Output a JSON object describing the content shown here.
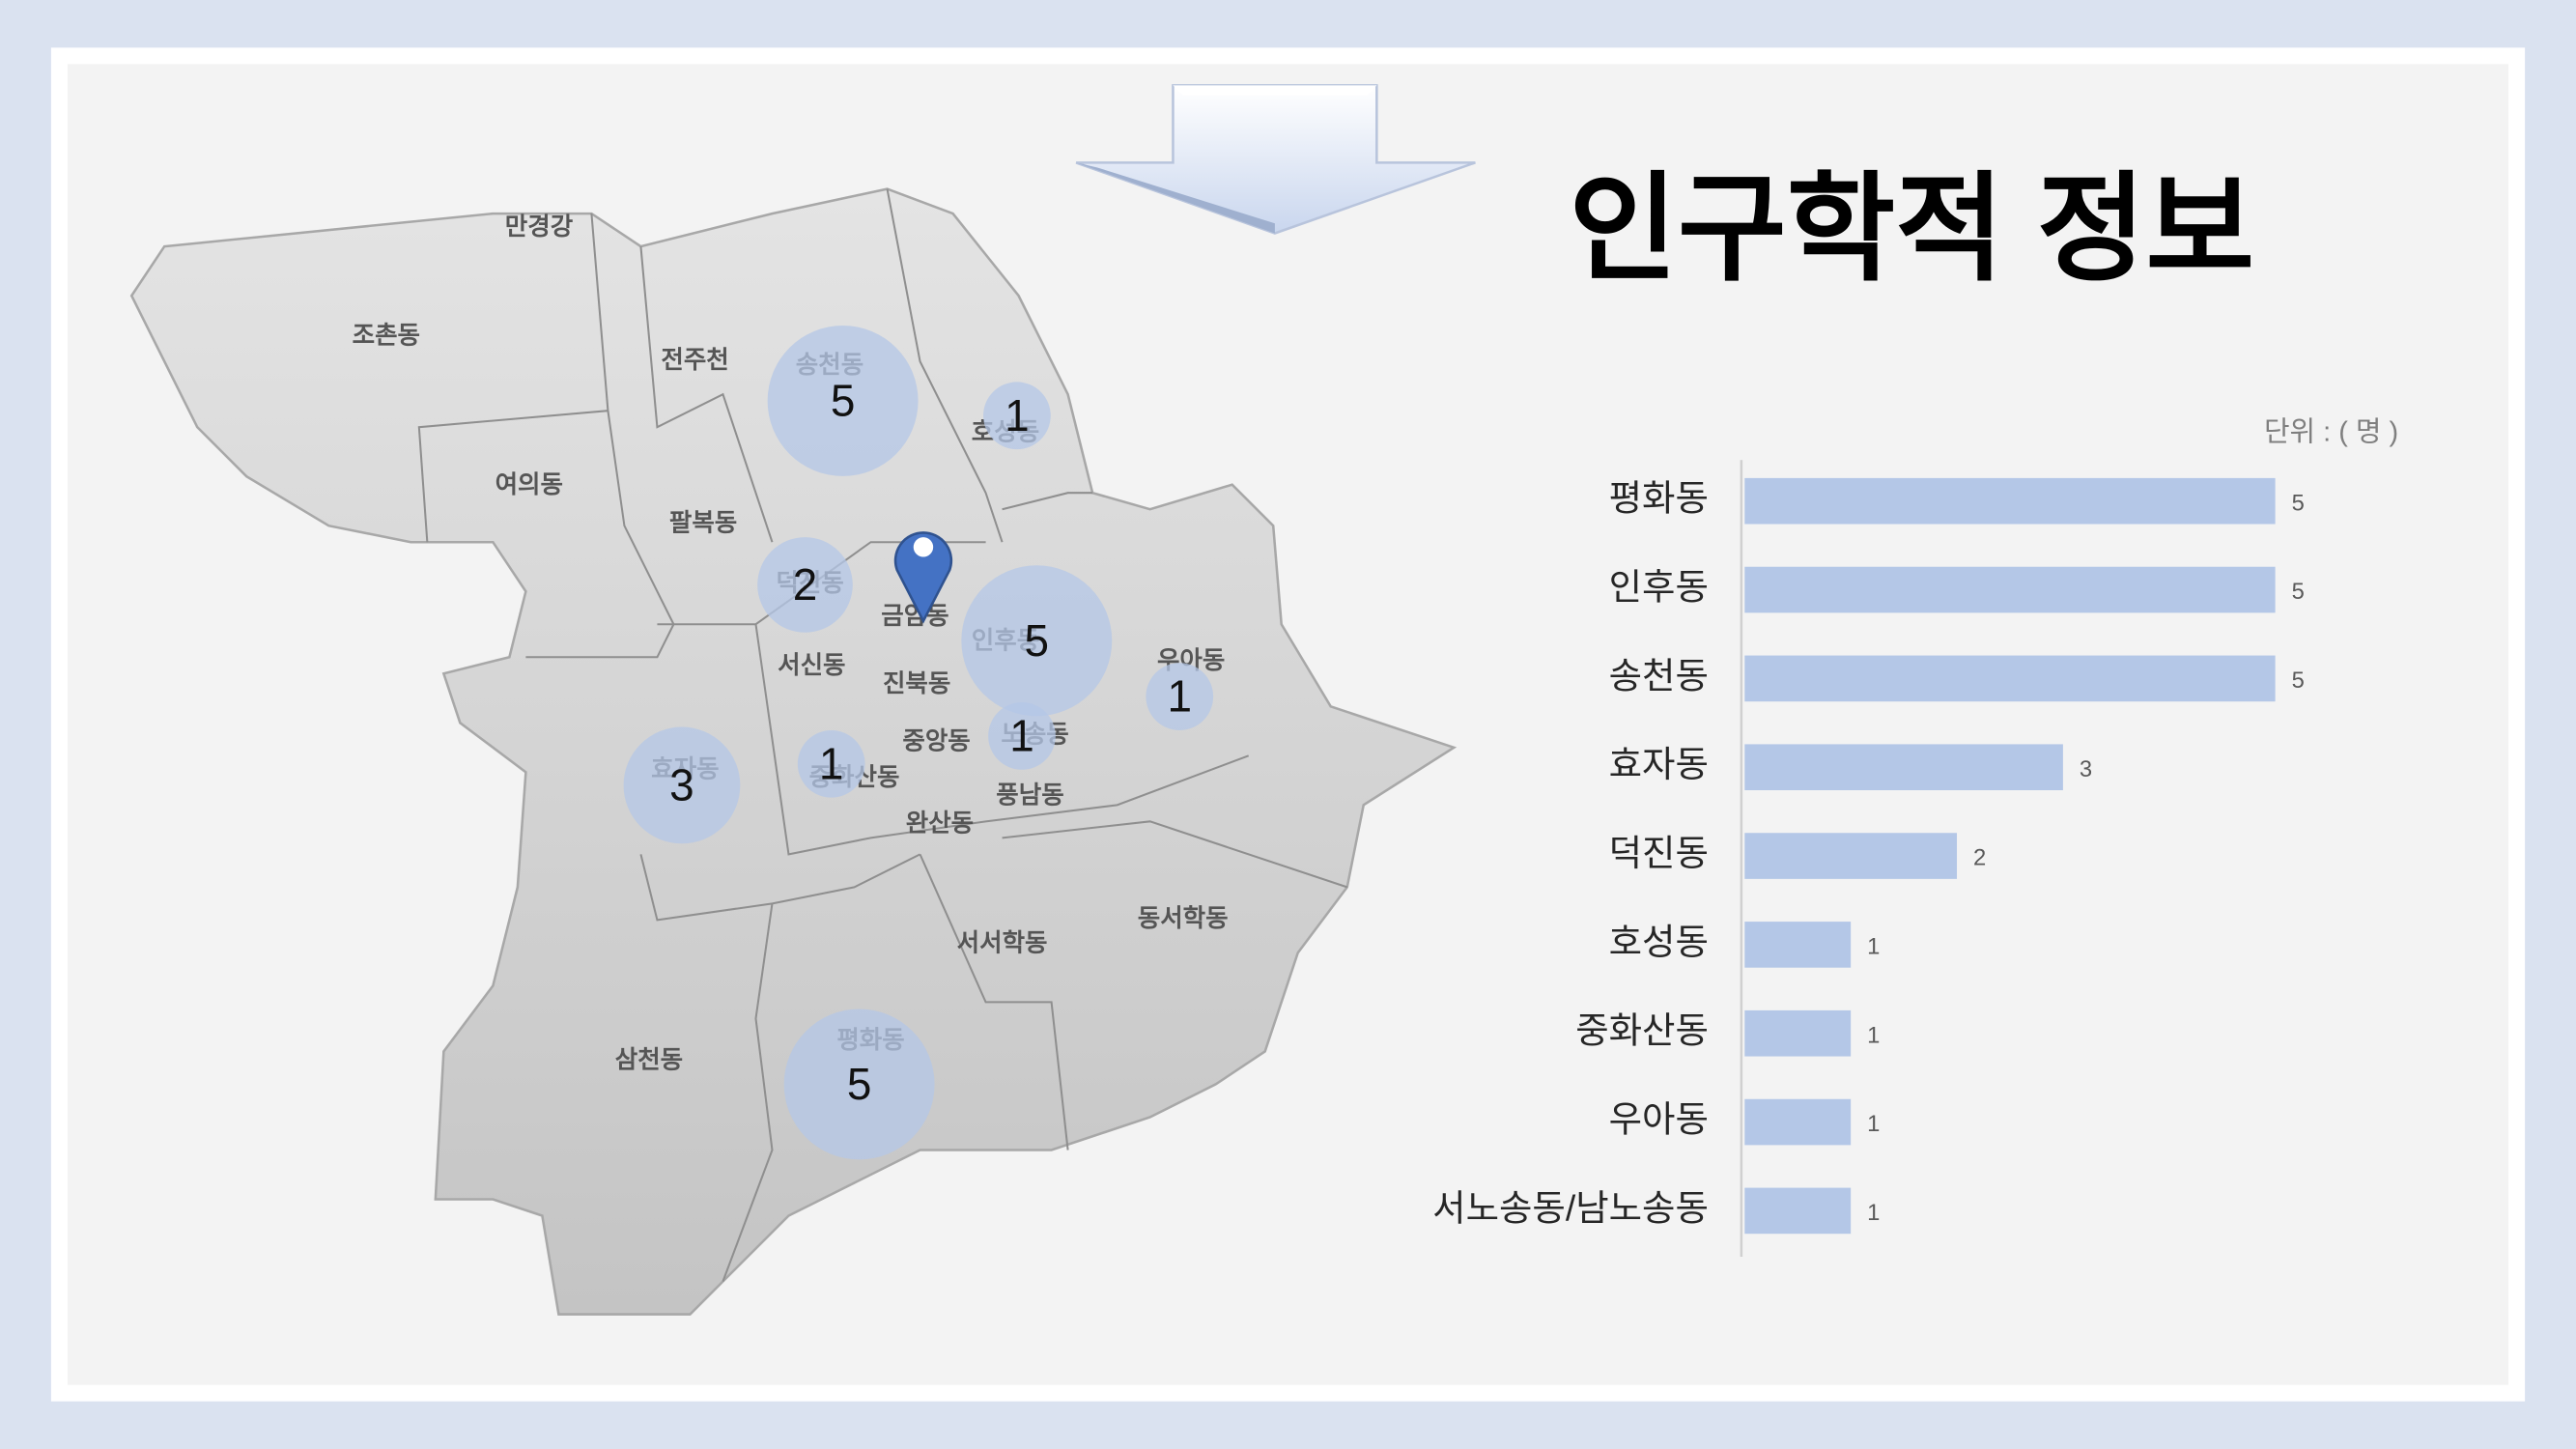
{
  "title": "인구학적 정보",
  "map": {
    "labels": [
      "만경강",
      "조촌동",
      "전주천",
      "송천동",
      "호성동",
      "여의동",
      "팔복동",
      "덕진동",
      "금암동",
      "인후동",
      "우아동",
      "서신동",
      "진북동",
      "노송동",
      "중앙동",
      "효자동",
      "중화산동",
      "풍남동",
      "완산동",
      "동서학동",
      "서서학동",
      "삼천동",
      "평화동"
    ],
    "bubbles": [
      {
        "label": "송천동",
        "value": 5
      },
      {
        "label": "호성동",
        "value": 1
      },
      {
        "label": "덕진동",
        "value": 2
      },
      {
        "label": "인후동",
        "value": 5
      },
      {
        "label": "우아동",
        "value": 1
      },
      {
        "label": "노송동",
        "value": 1
      },
      {
        "label": "중화산동",
        "value": 1
      },
      {
        "label": "효자동",
        "value": 3
      },
      {
        "label": "평화동",
        "value": 5
      }
    ]
  },
  "chart_data": {
    "type": "bar",
    "orientation": "horizontal",
    "note": "단위 : ( 명 )",
    "categories": [
      "평화동",
      "인후동",
      "송천동",
      "효자동",
      "덕진동",
      "호성동",
      "중화산동",
      "우아동",
      "서노송동/남노송동"
    ],
    "values": [
      5,
      5,
      5,
      3,
      2,
      1,
      1,
      1,
      1
    ],
    "color": "#b4c7e7",
    "xlim": [
      0,
      5
    ]
  }
}
